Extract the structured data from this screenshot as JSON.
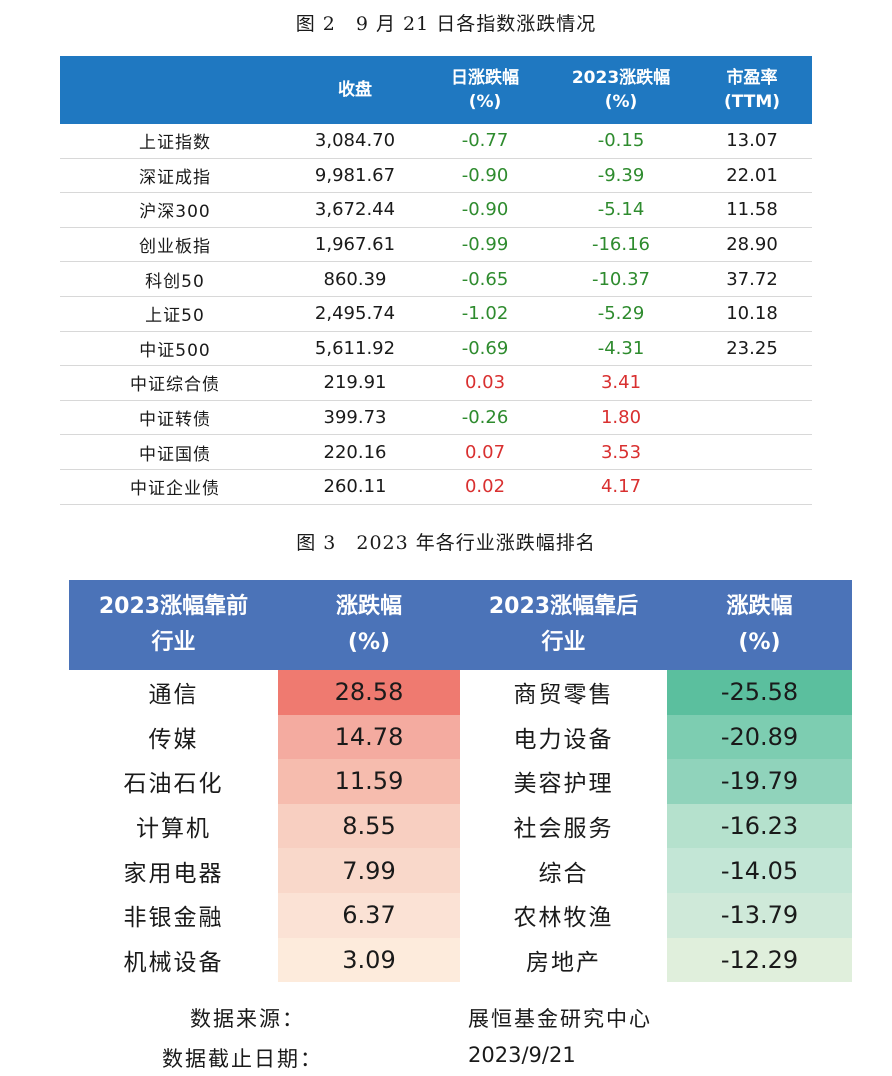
{
  "figure2": {
    "title": "图 2　9 月 21 日各指数涨跌情况",
    "headers": [
      "",
      "收盘",
      "日涨跌幅\n(%)",
      "2023涨跌幅\n(%)",
      "市盈率\n(TTM)"
    ],
    "rows": [
      {
        "name": "上证指数",
        "close": "3,084.70",
        "day": "-0.77",
        "ytd": "-0.15",
        "pe": "13.07"
      },
      {
        "name": "深证成指",
        "close": "9,981.67",
        "day": "-0.90",
        "ytd": "-9.39",
        "pe": "22.01"
      },
      {
        "name": "沪深300",
        "close": "3,672.44",
        "day": "-0.90",
        "ytd": "-5.14",
        "pe": "11.58"
      },
      {
        "name": "创业板指",
        "close": "1,967.61",
        "day": "-0.99",
        "ytd": "-16.16",
        "pe": "28.90"
      },
      {
        "name": "科创50",
        "close": "860.39",
        "day": "-0.65",
        "ytd": "-10.37",
        "pe": "37.72"
      },
      {
        "name": "上证50",
        "close": "2,495.74",
        "day": "-1.02",
        "ytd": "-5.29",
        "pe": "10.18"
      },
      {
        "name": "中证500",
        "close": "5,611.92",
        "day": "-0.69",
        "ytd": "-4.31",
        "pe": "23.25"
      },
      {
        "name": "中证综合债",
        "close": "219.91",
        "day": "0.03",
        "ytd": "3.41",
        "pe": ""
      },
      {
        "name": "中证转债",
        "close": "399.73",
        "day": "-0.26",
        "ytd": "1.80",
        "pe": ""
      },
      {
        "name": "中证国债",
        "close": "220.16",
        "day": "0.07",
        "ytd": "3.53",
        "pe": ""
      },
      {
        "name": "中证企业债",
        "close": "260.11",
        "day": "0.02",
        "ytd": "4.17",
        "pe": ""
      }
    ],
    "colors": {
      "header_bg": "#1f78c1",
      "negative": "#2e8b2e",
      "positive": "#d93030"
    }
  },
  "figure3": {
    "title": "图 3　2023 年各行业涨跌幅排名",
    "headers": [
      "2023涨幅靠前\n行业",
      "涨跌幅\n(%)",
      "2023涨幅靠后\n行业",
      "涨跌幅\n(%)"
    ],
    "rows": [
      {
        "top": "通信",
        "top_val": "28.58",
        "bottom": "商贸零售",
        "bottom_val": "-25.58"
      },
      {
        "top": "传媒",
        "top_val": "14.78",
        "bottom": "电力设备",
        "bottom_val": "-20.89"
      },
      {
        "top": "石油石化",
        "top_val": "11.59",
        "bottom": "美容护理",
        "bottom_val": "-19.79"
      },
      {
        "top": "计算机",
        "top_val": "8.55",
        "bottom": "社会服务",
        "bottom_val": "-16.23"
      },
      {
        "top": "家用电器",
        "top_val": "7.99",
        "bottom": "综合",
        "bottom_val": "-14.05"
      },
      {
        "top": "非银金融",
        "top_val": "6.37",
        "bottom": "农林牧渔",
        "bottom_val": "-13.79"
      },
      {
        "top": "机械设备",
        "top_val": "3.09",
        "bottom": "房地产",
        "bottom_val": "-12.29"
      }
    ],
    "top_colors": [
      "#ef7a70",
      "#f4aba0",
      "#f6bcae",
      "#f8cfc1",
      "#f9d8ca",
      "#fbe2d5",
      "#fdebdc"
    ],
    "bottom_colors": [
      "#5bbf9e",
      "#7dcdb1",
      "#90d3bb",
      "#b5e1cd",
      "#c3e6d6",
      "#cfe9d9",
      "#e0efdc"
    ],
    "header_bg": "#4b73b8"
  },
  "source": {
    "label": "数据来源：",
    "value": "展恒基金研究中心"
  },
  "cutoff": {
    "label": "数据截止日期：",
    "value": "2023/9/21"
  }
}
